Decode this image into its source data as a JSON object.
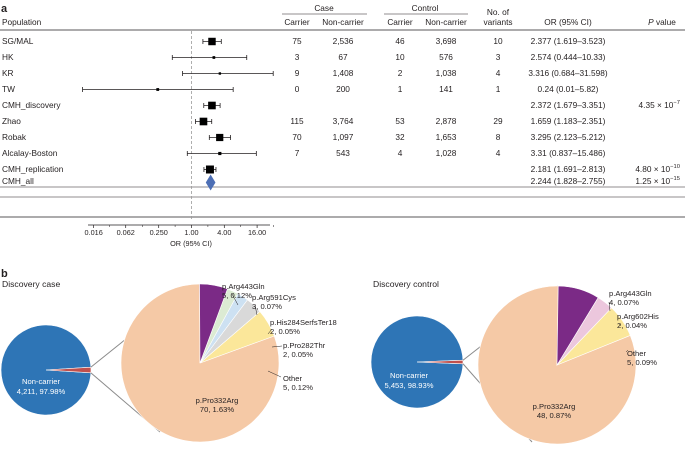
{
  "panel_a": {
    "label": "a",
    "headers": {
      "population": "Population",
      "case": "Case",
      "control": "Control",
      "carrier": "Carrier",
      "non_carrier": "Non-carrier",
      "variants_line1": "No. of",
      "variants_line2": "variants",
      "or_ci": "OR (95% CI)",
      "p_value_p": "P",
      "p_value_rest": " value"
    },
    "rows": [
      {
        "name": "SG/MAL",
        "case_carrier": "75",
        "case_non": "2,536",
        "ctrl_carrier": "46",
        "ctrl_non": "3,698",
        "variants": "10",
        "or_text": "2.377 (1.619–3.523)",
        "p_mant": "",
        "p_exp": ""
      },
      {
        "name": "HK",
        "case_carrier": "3",
        "case_non": "67",
        "ctrl_carrier": "10",
        "ctrl_non": "576",
        "variants": "3",
        "or_text": "2.574 (0.444–10.33)",
        "p_mant": "",
        "p_exp": ""
      },
      {
        "name": "KR",
        "case_carrier": "9",
        "case_non": "1,408",
        "ctrl_carrier": "2",
        "ctrl_non": "1,038",
        "variants": "4",
        "or_text": "3.316 (0.684–31.598)",
        "p_mant": "",
        "p_exp": ""
      },
      {
        "name": "TW",
        "case_carrier": "0",
        "case_non": "200",
        "ctrl_carrier": "1",
        "ctrl_non": "141",
        "variants": "1",
        "or_text": "0.24 (0.01–5.82)",
        "p_mant": "",
        "p_exp": ""
      },
      {
        "name": "CMH_discovery",
        "case_carrier": "",
        "case_non": "",
        "ctrl_carrier": "",
        "ctrl_non": "",
        "variants": "",
        "or_text": "2.372 (1.679–3.351)",
        "p_mant": "4.35 × 10",
        "p_exp": "−7"
      },
      {
        "name": "Zhao",
        "case_carrier": "115",
        "case_non": "3,764",
        "ctrl_carrier": "53",
        "ctrl_non": "2,878",
        "variants": "29",
        "or_text": "1.659 (1.183–2.351)",
        "p_mant": "",
        "p_exp": ""
      },
      {
        "name": "Robak",
        "case_carrier": "70",
        "case_non": "1,097",
        "ctrl_carrier": "32",
        "ctrl_non": "1,653",
        "variants": "8",
        "or_text": "3.295 (2.123–5.212)",
        "p_mant": "",
        "p_exp": ""
      },
      {
        "name": "Alcalay-Boston",
        "case_carrier": "7",
        "case_non": "543",
        "ctrl_carrier": "4",
        "ctrl_non": "1,028",
        "variants": "4",
        "or_text": "3.31 (0.837–15.486)",
        "p_mant": "",
        "p_exp": ""
      },
      {
        "name": "CMH_replication",
        "case_carrier": "",
        "case_non": "",
        "ctrl_carrier": "",
        "ctrl_non": "",
        "variants": "",
        "or_text": "2.181 (1.691–2.813)",
        "p_mant": "4.80 × 10",
        "p_exp": "−10"
      },
      {
        "name": "CMH_all",
        "case_carrier": "",
        "case_non": "",
        "ctrl_carrier": "",
        "ctrl_non": "",
        "variants": "",
        "or_text": "2.244 (1.828–2.755)",
        "p_mant": "1.25 × 10",
        "p_exp": "−15"
      }
    ]
  },
  "panel_b": {
    "label": "b",
    "case_title": "Discovery case",
    "control_title": "Discovery control"
  },
  "colors": {
    "carrier_blue": "#2e75b6",
    "pro332": "#f5c9a6",
    "arg443": "#fbe79a",
    "arg591": "#d9d9d9",
    "his284": "#cde1f2",
    "pro282": "#dcebd3",
    "other": "#7b2a86",
    "arg602": "#ecc7dd",
    "diamond": "#4d6fb5",
    "sliver": "#c0504d"
  },
  "chart_data": [
    {
      "type": "forest",
      "title": "",
      "xlabel": "OR (95% CI)",
      "x_scale": "log",
      "ticks": [
        0.016,
        0.062,
        0.25,
        1.0,
        4.0,
        16.0
      ],
      "tick_labels": [
        "0.016",
        "0.062",
        "0.250",
        "1.00",
        "4.00",
        "16.00"
      ],
      "reference_line": 1.0,
      "points": [
        {
          "label": "SG/MAL",
          "or": 2.377,
          "lo": 1.619,
          "hi": 3.523,
          "kind": "square"
        },
        {
          "label": "HK",
          "or": 2.574,
          "lo": 0.444,
          "hi": 10.33,
          "kind": "square"
        },
        {
          "label": "KR",
          "or": 3.316,
          "lo": 0.684,
          "hi": 31.598,
          "kind": "square"
        },
        {
          "label": "TW",
          "or": 0.24,
          "lo": 0.01,
          "hi": 5.82,
          "kind": "square"
        },
        {
          "label": "CMH_discovery",
          "or": 2.372,
          "lo": 1.679,
          "hi": 3.351,
          "kind": "square"
        },
        {
          "label": "Zhao",
          "or": 1.659,
          "lo": 1.183,
          "hi": 2.351,
          "kind": "square"
        },
        {
          "label": "Robak",
          "or": 3.295,
          "lo": 2.123,
          "hi": 5.212,
          "kind": "square"
        },
        {
          "label": "Alcalay-Boston",
          "or": 3.31,
          "lo": 0.837,
          "hi": 15.486,
          "kind": "square"
        },
        {
          "label": "CMH_replication",
          "or": 2.181,
          "lo": 1.691,
          "hi": 2.813,
          "kind": "square"
        },
        {
          "label": "CMH_all",
          "or": 2.244,
          "lo": 1.828,
          "hi": 2.755,
          "kind": "diamond"
        }
      ]
    },
    {
      "type": "pie",
      "title": "Discovery case",
      "outer": [
        {
          "label": "Non-carrier",
          "count": "4,211",
          "pct": "97.98%",
          "value": 97.98
        },
        {
          "label": "Carrier",
          "count": "",
          "pct": "",
          "value": 2.02
        }
      ],
      "breakdown": [
        {
          "label": "p.Pro332Arg",
          "count": "70",
          "pct": "1.63%",
          "value": 70
        },
        {
          "label": "p.Arg443Gln",
          "count": "5",
          "pct": "0.12%",
          "value": 5
        },
        {
          "label": "p.Arg591Cys",
          "count": "3",
          "pct": "0.07%",
          "value": 3
        },
        {
          "label": "p.His284SerfsTer18",
          "count": "2",
          "pct": "0.05%",
          "value": 2
        },
        {
          "label": "p.Pro282Thr",
          "count": "2",
          "pct": "0.05%",
          "value": 2
        },
        {
          "label": "Other",
          "count": "5",
          "pct": "0.12%",
          "value": 5
        }
      ]
    },
    {
      "type": "pie",
      "title": "Discovery control",
      "outer": [
        {
          "label": "Non-carrier",
          "count": "5,453",
          "pct": "98.93%",
          "value": 98.93
        },
        {
          "label": "Carrier",
          "count": "",
          "pct": "",
          "value": 1.07
        }
      ],
      "breakdown": [
        {
          "label": "p.Pro332Arg",
          "count": "48",
          "pct": "0.87%",
          "value": 48
        },
        {
          "label": "p.Arg443Gln",
          "count": "4",
          "pct": "0.07%",
          "value": 4
        },
        {
          "label": "p.Arg602His",
          "count": "2",
          "pct": "0.04%",
          "value": 2
        },
        {
          "label": "Other",
          "count": "5",
          "pct": "0.09%",
          "value": 5
        }
      ]
    }
  ]
}
